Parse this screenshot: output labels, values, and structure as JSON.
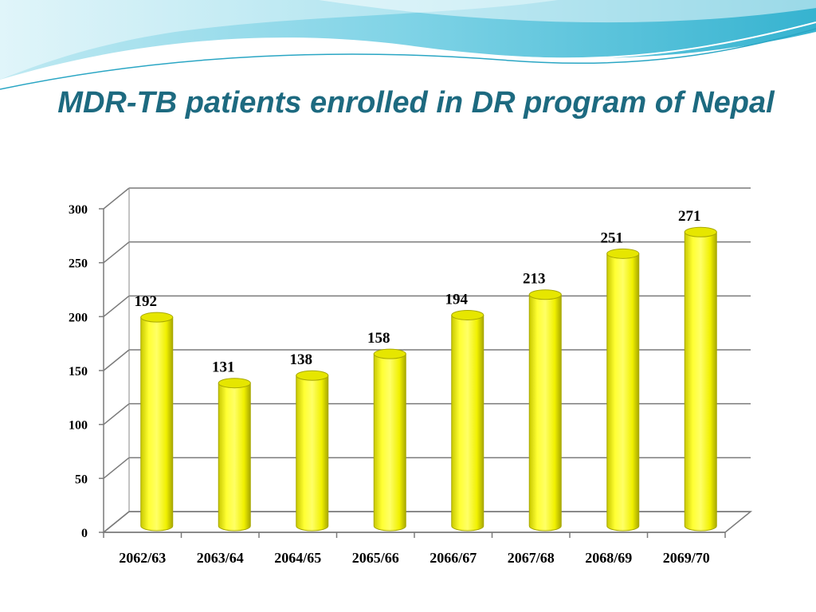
{
  "slide": {
    "title": "MDR-TB patients enrolled  in DR program of Nepal",
    "colors": {
      "title": "#1d6a80",
      "bar": "#ffff00",
      "bar_edge": "#b8b800",
      "decor_teal": "#4bbfd6"
    }
  },
  "chart_data": {
    "type": "bar",
    "style": "3d-cylinder",
    "title": "",
    "xlabel": "",
    "ylabel": "",
    "categories": [
      "2062/63",
      "2063/64",
      "2064/65",
      "2065/66",
      "2066/67",
      "2067/68",
      "2068/69",
      "2069/70"
    ],
    "values": [
      192,
      131,
      138,
      158,
      194,
      213,
      251,
      271
    ],
    "ylim": [
      0,
      300
    ],
    "yticks": [
      0,
      50,
      100,
      150,
      200,
      250,
      300
    ],
    "grid": true,
    "legend": "none",
    "data_labels": true
  }
}
